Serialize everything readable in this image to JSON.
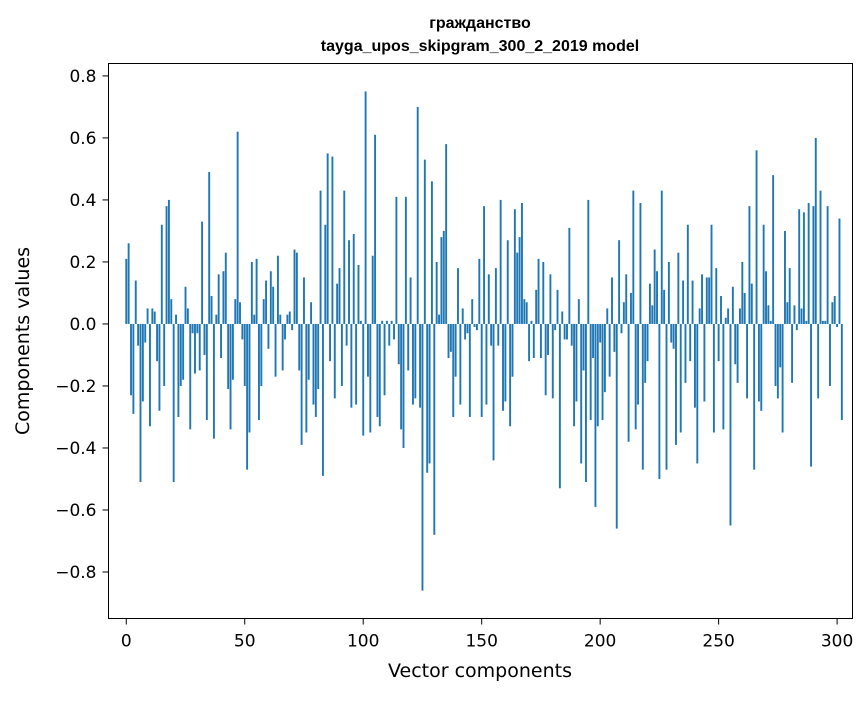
{
  "chart_data": {
    "type": "bar",
    "title": "гражданство",
    "subtitle": "tayga_upos_skipgram_300_2_2019 model",
    "xlabel": "Vector components",
    "ylabel": "Components values",
    "xlim": [
      -7.5,
      306.5
    ],
    "ylim": [
      -0.95,
      0.84
    ],
    "xticks": [
      0,
      50,
      100,
      150,
      200,
      250,
      300
    ],
    "yticks": [
      -0.8,
      -0.6,
      -0.4,
      -0.2,
      0.0,
      0.2,
      0.4,
      0.6,
      0.8
    ],
    "ytick_labels": [
      "−0.8",
      "−0.6",
      "−0.4",
      "−0.2",
      "0.0",
      "0.2",
      "0.4",
      "0.6",
      "0.8"
    ],
    "color": "#1f77b4",
    "grid": false,
    "series": [
      {
        "name": "components",
        "x_start": 0,
        "values": [
          0.21,
          0.26,
          -0.23,
          -0.29,
          0.14,
          -0.07,
          -0.51,
          -0.25,
          -0.06,
          0.05,
          -0.33,
          0.05,
          0.04,
          -0.12,
          -0.28,
          0.32,
          -0.2,
          0.38,
          0.4,
          0.08,
          -0.51,
          0.03,
          -0.3,
          -0.2,
          -0.18,
          0.12,
          0.05,
          -0.34,
          -0.03,
          -0.16,
          -0.03,
          -0.15,
          0.33,
          -0.1,
          -0.31,
          0.49,
          0.09,
          -0.37,
          0.03,
          0.16,
          -0.11,
          0.17,
          0.23,
          -0.21,
          -0.34,
          -0.18,
          0.08,
          0.62,
          0.07,
          -0.05,
          -0.2,
          -0.47,
          -0.35,
          0.2,
          0.03,
          0.21,
          -0.31,
          -0.2,
          0.08,
          0.14,
          -0.08,
          0.17,
          0.12,
          -0.17,
          0.22,
          0.03,
          -0.15,
          -0.05,
          0.03,
          0.04,
          -0.02,
          0.24,
          0.23,
          -0.15,
          -0.39,
          0.15,
          -0.35,
          -0.18,
          0.07,
          -0.26,
          -0.3,
          -0.21,
          0.43,
          -0.49,
          0.32,
          0.55,
          -0.12,
          0.54,
          -0.24,
          0.13,
          0.18,
          -0.2,
          0.43,
          -0.07,
          0.27,
          -0.27,
          0.29,
          -0.26,
          0.19,
          0.01,
          -0.36,
          0.75,
          -0.17,
          -0.35,
          0.22,
          0.61,
          -0.3,
          -0.33,
          0.01,
          -0.23,
          0.01,
          -0.07,
          0.01,
          -0.05,
          0.41,
          -0.13,
          -0.34,
          -0.4,
          0.41,
          -0.15,
          0.15,
          -0.26,
          -0.24,
          0.7,
          -0.27,
          -0.86,
          0.53,
          -0.48,
          -0.45,
          0.46,
          -0.68,
          0.2,
          0.03,
          0.28,
          0.3,
          0.58,
          -0.11,
          -0.09,
          -0.3,
          -0.17,
          0.18,
          -0.26,
          0.05,
          -0.05,
          -0.03,
          -0.3,
          0.08,
          -0.01,
          -0.02,
          0.21,
          -0.3,
          0.38,
          -0.26,
          0.16,
          -0.07,
          -0.44,
          0.18,
          -0.07,
          0.4,
          -0.28,
          -0.25,
          0.27,
          -0.33,
          -0.17,
          0.37,
          0.23,
          0.28,
          0.39,
          0.08,
          0.07,
          -0.12,
          0.01,
          -0.11,
          0.11,
          0.21,
          -0.11,
          0.2,
          -0.23,
          -0.1,
          0.16,
          -0.24,
          -0.02,
          0.11,
          -0.53,
          0.04,
          -0.05,
          -0.05,
          0.31,
          -0.07,
          -0.33,
          -0.25,
          0.08,
          -0.45,
          -0.15,
          -0.51,
          0.4,
          -0.31,
          -0.11,
          -0.59,
          -0.33,
          -0.06,
          -0.31,
          -0.22,
          0.05,
          -0.17,
          0.15,
          -0.09,
          -0.66,
          0.27,
          -0.03,
          0.07,
          0.16,
          -0.38,
          0.1,
          0.43,
          -0.34,
          -0.26,
          0.39,
          -0.47,
          -0.19,
          -0.12,
          0.13,
          0.06,
          0.24,
          0.17,
          -0.5,
          0.43,
          0.11,
          -0.47,
          0.2,
          -0.06,
          -0.08,
          -0.39,
          0.23,
          -0.35,
          0.14,
          -0.19,
          0.32,
          -0.12,
          0.14,
          -0.27,
          -0.45,
          0.05,
          0.16,
          -0.25,
          0.15,
          0.15,
          0.32,
          -0.35,
          0.18,
          -0.12,
          0.09,
          -0.34,
          0.02,
          0.05,
          -0.65,
          0.12,
          -0.13,
          -0.19,
          0.05,
          0.2,
          0.1,
          -0.24,
          0.38,
          0.13,
          -0.47,
          0.56,
          -0.25,
          -0.28,
          0.32,
          0.17,
          0.06,
          0.01,
          0.48,
          -0.2,
          -0.24,
          -0.14,
          -0.35,
          0.3,
          0.07,
          0.18,
          -0.19,
          0.06,
          -0.02,
          0.37,
          0.05,
          0.36,
          0.01,
          0.39,
          -0.46,
          0.38,
          0.6,
          -0.24,
          0.43,
          0.01,
          0.01,
          0.38,
          -0.2,
          0.07,
          0.09,
          -0.01,
          0.34,
          -0.31
        ]
      }
    ]
  }
}
